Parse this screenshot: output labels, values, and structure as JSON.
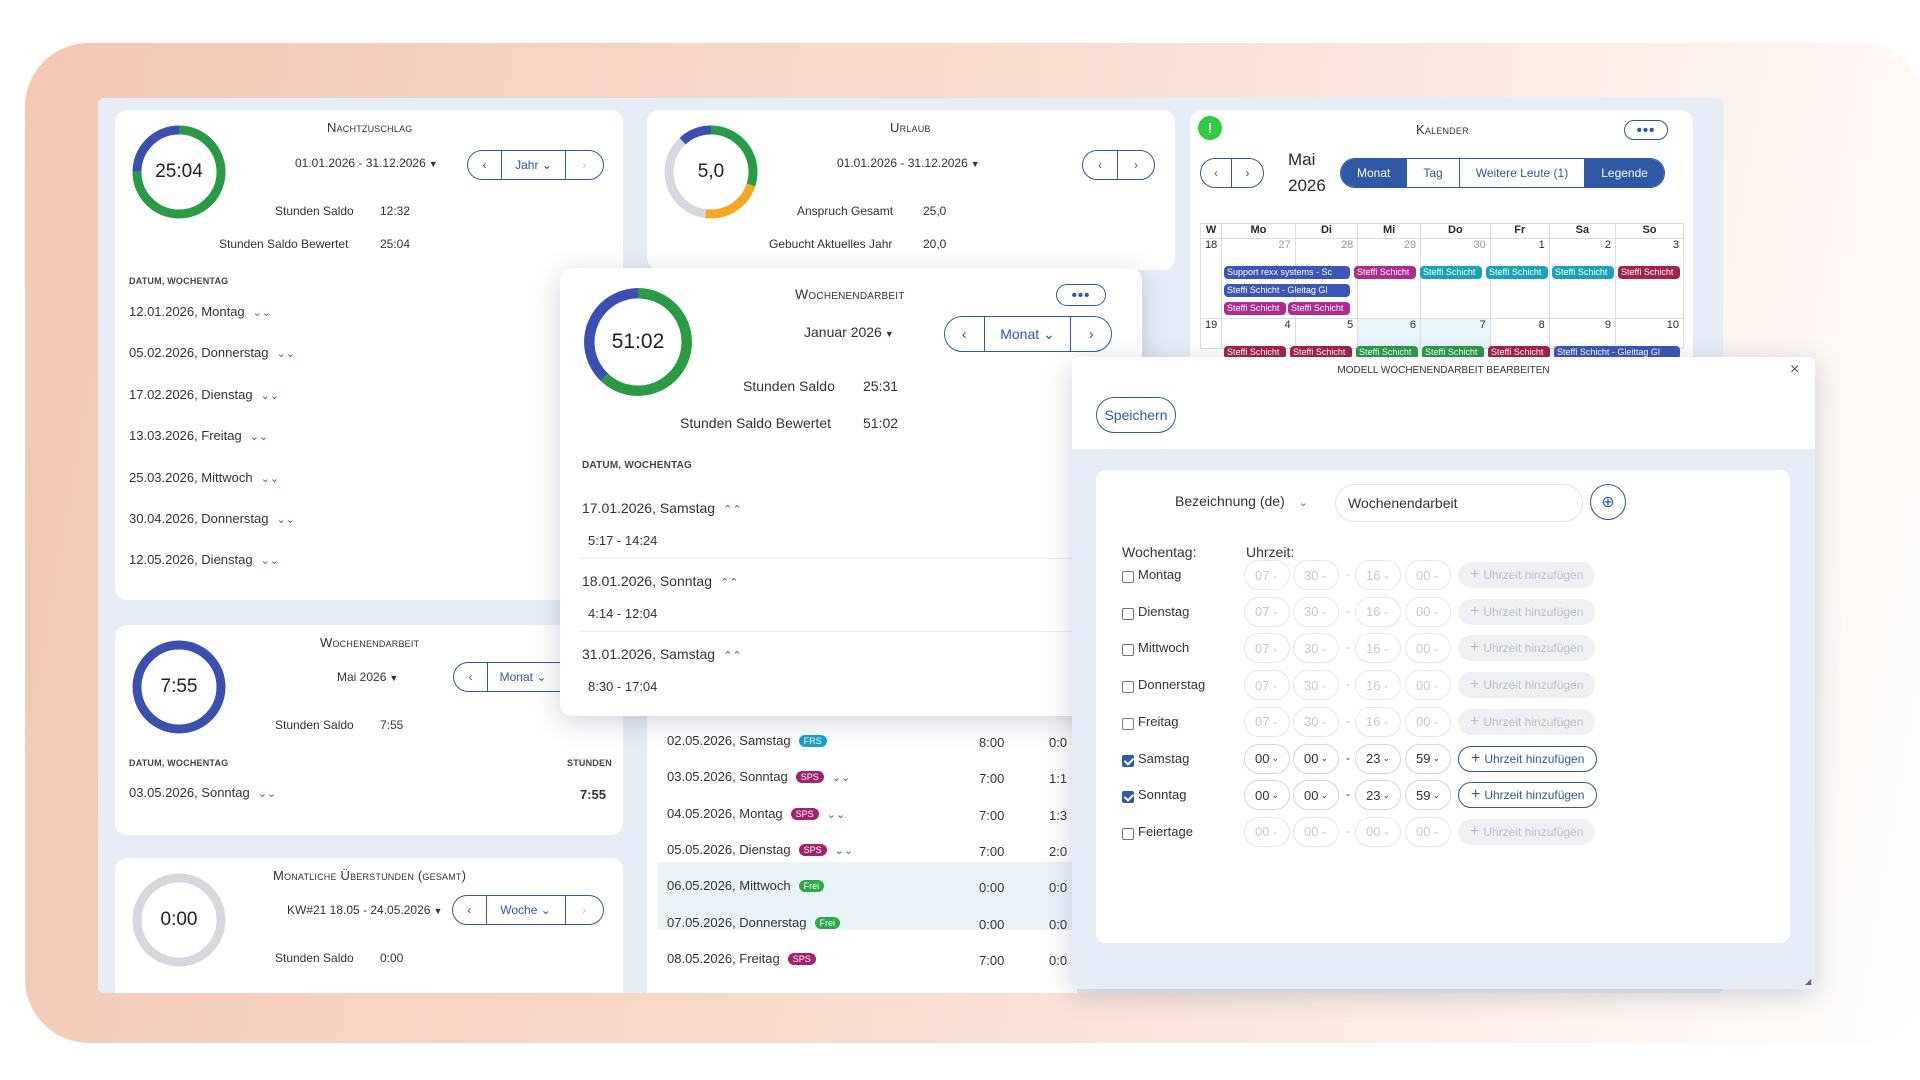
{
  "nacht": {
    "title": "Nachtzuschlag",
    "ring": "25:04",
    "range": "01.01.2026 - 31.12.2026",
    "period": "Jahr",
    "saldo_label": "Stunden Saldo",
    "saldo_val": "12:32",
    "bewertet_label": "Stunden Saldo Bewertet",
    "bewertet_val": "25:04",
    "cap": "Datum, Wochentag",
    "rows": [
      "12.01.2026, Montag",
      "05.02.2026, Donnerstag",
      "17.02.2026, Dienstag",
      "13.03.2026, Freitag",
      "25.03.2026, Mittwoch",
      "30.04.2026, Donnerstag",
      "12.05.2026, Dienstag"
    ]
  },
  "urlaub": {
    "title": "Urlaub",
    "ring": "5,0",
    "range": "01.01.2026 - 31.12.2026",
    "anspruch_label": "Anspruch Gesamt",
    "anspruch_val": "25,0",
    "gebucht_label": "Gebucht Aktuelles Jahr",
    "gebucht_val": "20,0"
  },
  "woche_small": {
    "title": "Wochenendarbeit",
    "ring": "7:55",
    "range": "Mai 2026",
    "period": "Monat",
    "saldo_label": "Stunden Saldo",
    "saldo_val": "7:55",
    "cap": "Datum, Wochentag",
    "cap2": "Stunden",
    "row": "03.05.2026, Sonntag",
    "row_val": "7:55"
  },
  "monat": {
    "title": "Monatliche Überstunden (gesamt)",
    "ring": "0:00",
    "range": "KW#21 18.05 - 24.05.2026",
    "period": "Woche",
    "saldo_label": "Stunden Saldo",
    "saldo_val": "0:00"
  },
  "woche_big": {
    "title": "Wochenendarbeit",
    "ring": "51:02",
    "range": "Januar 2026",
    "period": "Monat",
    "saldo_label": "Stunden Saldo",
    "saldo_val": "25:31",
    "bewertet_label": "Stunden Saldo Bewertet",
    "bewertet_val": "51:02",
    "cap": "Datum, Wochentag",
    "rows": [
      {
        "date": "17.01.2026, Samstag",
        "time": "5:17 - 14:24"
      },
      {
        "date": "18.01.2026, Sonntag",
        "time": "4:14 - 12:04"
      },
      {
        "date": "31.01.2026, Samstag",
        "time": "8:30 - 17:04"
      }
    ]
  },
  "list": [
    {
      "date": "02.05.2026, Samstag",
      "tag": "FRS",
      "h": "8:00",
      "s": "0:0"
    },
    {
      "date": "03.05.2026, Sonntag",
      "tag": "SPS",
      "h": "7:00",
      "s": "1:1"
    },
    {
      "date": "04.05.2026, Montag",
      "tag": "SPS",
      "h": "7:00",
      "s": "1:3"
    },
    {
      "date": "05.05.2026, Dienstag",
      "tag": "SPS",
      "h": "7:00",
      "s": "2:0"
    },
    {
      "date": "06.05.2026, Mittwoch",
      "tag": "Frei",
      "h": "0:00",
      "s": "0:0"
    },
    {
      "date": "07.05.2026, Donnerstag",
      "tag": "Frei",
      "h": "0:00",
      "s": "0:0"
    },
    {
      "date": "08.05.2026, Freitag",
      "tag": "SPS",
      "h": "7:00",
      "s": "0:0"
    }
  ],
  "kalender": {
    "title": "Kalender",
    "month": "Mai",
    "year": "2026",
    "tabs": [
      "Monat",
      "Tag",
      "Weitere Leute (1)",
      "Legende"
    ],
    "head": [
      "W",
      "Mo",
      "Di",
      "Mi",
      "Do",
      "Fr",
      "Sa",
      "So"
    ],
    "w1": [
      "18",
      "27",
      "28",
      "29",
      "30",
      "1",
      "2",
      "3"
    ],
    "w2": [
      "19",
      "4",
      "5",
      "6",
      "7",
      "8",
      "9",
      "10"
    ],
    "ev": {
      "support": "Support rexx systems - Sc",
      "schicht": "Steffi Schicht",
      "gleit": "Steffi Schicht - Gleitag Gl",
      "gleit2": "Steffi Schicht - Gleittag Gl"
    }
  },
  "modal": {
    "title": "Modell Wochenendarbeit bearbeiten",
    "save": "Speichern",
    "bez_label": "Bezeichnung (de)",
    "bez_value": "Wochenendarbeit",
    "wt_label": "Wochentag:",
    "uz_label": "Uhrzeit:",
    "add": "Uhrzeit hinzufügen",
    "days": [
      {
        "name": "Montag",
        "checked": false,
        "v": [
          "07",
          "30",
          "16",
          "00"
        ]
      },
      {
        "name": "Dienstag",
        "checked": false,
        "v": [
          "07",
          "30",
          "16",
          "00"
        ]
      },
      {
        "name": "Mittwoch",
        "checked": false,
        "v": [
          "07",
          "30",
          "16",
          "00"
        ]
      },
      {
        "name": "Donnerstag",
        "checked": false,
        "v": [
          "07",
          "30",
          "16",
          "00"
        ]
      },
      {
        "name": "Freitag",
        "checked": false,
        "v": [
          "07",
          "30",
          "16",
          "00"
        ]
      },
      {
        "name": "Samstag",
        "checked": true,
        "v": [
          "00",
          "00",
          "23",
          "59"
        ]
      },
      {
        "name": "Sonntag",
        "checked": true,
        "v": [
          "00",
          "00",
          "23",
          "59"
        ]
      },
      {
        "name": "Feiertage",
        "checked": false,
        "v": [
          "00",
          "00",
          "00",
          "00"
        ]
      }
    ]
  },
  "rings": {
    "nacht": [
      {
        "color": "#2a9b45",
        "frac": 0.75
      },
      {
        "color": "#3b4fb0",
        "frac": 0.25
      }
    ],
    "urlaub": [
      {
        "color": "#2a9b45",
        "frac": 0.3
      },
      {
        "color": "#f5a623",
        "frac": 0.22
      },
      {
        "color": "#d5d9df",
        "frac": 0.36
      },
      {
        "color": "#3b4fb0",
        "frac": 0.12
      }
    ],
    "wsmall": [
      {
        "color": "#3b4fb0",
        "frac": 1.0
      }
    ],
    "wbig": [
      {
        "color": "#2a9b45",
        "frac": 0.62
      },
      {
        "color": "#3b4fb0",
        "frac": 0.38
      }
    ],
    "monat": [
      {
        "color": "#d5d9df",
        "frac": 1.0
      }
    ]
  },
  "colors": {
    "accent": "#2f58a6",
    "green": "#2a9b45",
    "blue": "#3b4fb0",
    "orange": "#f5a623",
    "magenta": "#a4216b"
  }
}
